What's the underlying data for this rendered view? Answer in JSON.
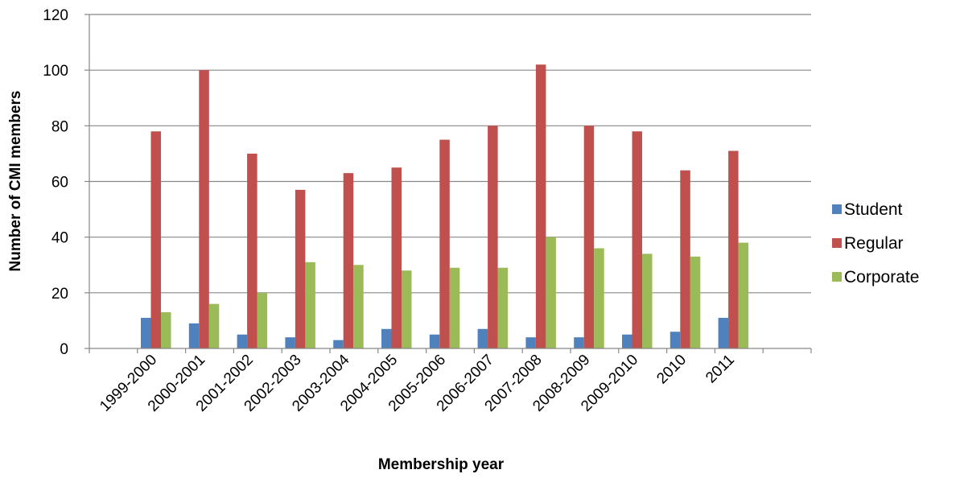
{
  "chart_data": {
    "type": "bar",
    "title": "",
    "xlabel": "Membership year",
    "ylabel": "Number of CMI members",
    "ylim": [
      0,
      120
    ],
    "yticks": [
      0,
      20,
      40,
      60,
      80,
      100,
      120
    ],
    "grid": true,
    "legend_position": "right",
    "categories": [
      "1999-2000",
      "2000-2001",
      "2001-2002",
      "2002-2003",
      "2003-2004",
      "2004-2005",
      "2005-2006",
      "2006-2007",
      "2007-2008",
      "2008-2009",
      "2009-2010",
      "2010",
      "2011",
      "",
      ""
    ],
    "series": [
      {
        "name": "Student",
        "color": "#4f81bd",
        "values": [
          11,
          9,
          5,
          4,
          3,
          7,
          5,
          7,
          4,
          4,
          5,
          6,
          11,
          null,
          null
        ]
      },
      {
        "name": "Regular",
        "color": "#c0504d",
        "values": [
          78,
          100,
          70,
          57,
          63,
          65,
          75,
          80,
          102,
          80,
          78,
          64,
          71,
          null,
          null
        ]
      },
      {
        "name": "Corporate",
        "color": "#9bbb59",
        "values": [
          13,
          16,
          20,
          31,
          30,
          28,
          29,
          29,
          40,
          36,
          34,
          33,
          38,
          null,
          null
        ]
      }
    ]
  }
}
